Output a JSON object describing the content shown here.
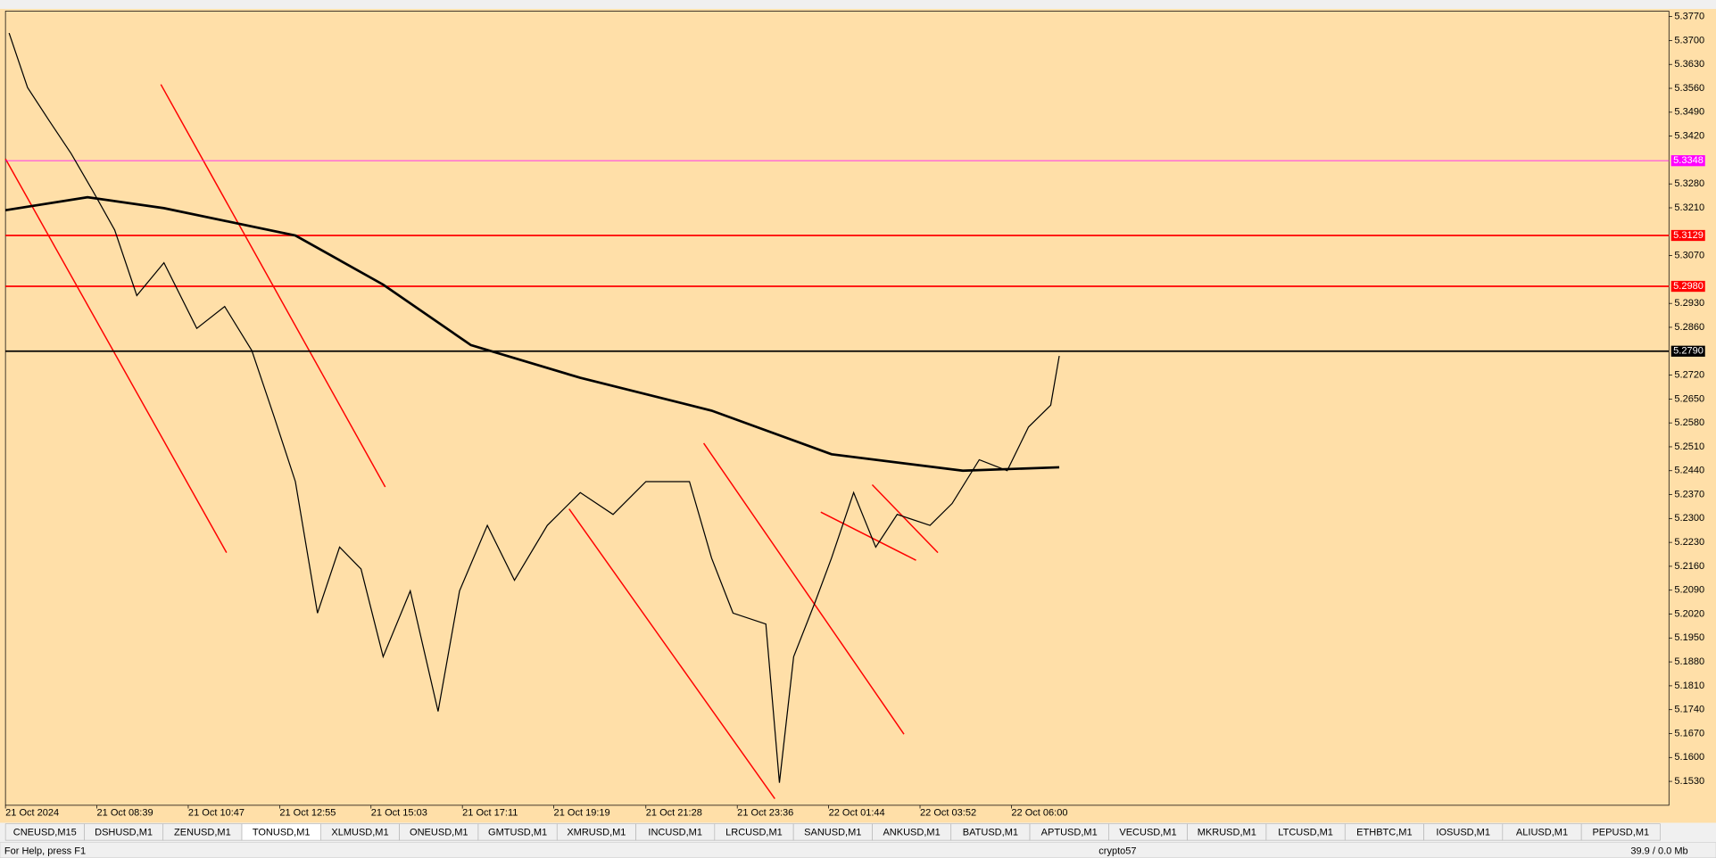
{
  "chart_data": {
    "type": "line",
    "xlim": [
      0,
      2330
    ],
    "ylim": [
      5.146,
      5.3786
    ],
    "xticks": [
      {
        "value": 0,
        "label": "21 Oct 2024"
      },
      {
        "value": 128,
        "label": "21 Oct 08:39"
      },
      {
        "value": 256,
        "label": "21 Oct 10:47"
      },
      {
        "value": 384,
        "label": "21 Oct 12:55"
      },
      {
        "value": 512,
        "label": "21 Oct 15:03"
      },
      {
        "value": 640,
        "label": "21 Oct 17:11"
      },
      {
        "value": 768,
        "label": "21 Oct 19:19"
      },
      {
        "value": 897,
        "label": "21 Oct 21:28"
      },
      {
        "value": 1025,
        "label": "21 Oct 23:36"
      },
      {
        "value": 1153,
        "label": "22 Oct 01:44"
      },
      {
        "value": 1281,
        "label": "22 Oct 03:52"
      },
      {
        "value": 1409,
        "label": "22 Oct 06:00"
      }
    ],
    "yticks": [
      {
        "value": 5.377,
        "label": "5.3770"
      },
      {
        "value": 5.37,
        "label": "5.3700"
      },
      {
        "value": 5.363,
        "label": "5.3630"
      },
      {
        "value": 5.356,
        "label": "5.3560"
      },
      {
        "value": 5.349,
        "label": "5.3490"
      },
      {
        "value": 5.342,
        "label": "5.3420"
      },
      {
        "value": 5.328,
        "label": "5.3280"
      },
      {
        "value": 5.321,
        "label": "5.3210"
      },
      {
        "value": 5.307,
        "label": "5.3070"
      },
      {
        "value": 5.293,
        "label": "5.2930"
      },
      {
        "value": 5.286,
        "label": "5.2860"
      },
      {
        "value": 5.272,
        "label": "5.2720"
      },
      {
        "value": 5.265,
        "label": "5.2650"
      },
      {
        "value": 5.258,
        "label": "5.2580"
      },
      {
        "value": 5.251,
        "label": "5.2510"
      },
      {
        "value": 5.244,
        "label": "5.2440"
      },
      {
        "value": 5.237,
        "label": "5.2370"
      },
      {
        "value": 5.23,
        "label": "5.2300"
      },
      {
        "value": 5.223,
        "label": "5.2230"
      },
      {
        "value": 5.216,
        "label": "5.2160"
      },
      {
        "value": 5.209,
        "label": "5.2090"
      },
      {
        "value": 5.202,
        "label": "5.2020"
      },
      {
        "value": 5.195,
        "label": "5.1950"
      },
      {
        "value": 5.188,
        "label": "5.1880"
      },
      {
        "value": 5.181,
        "label": "5.1810"
      },
      {
        "value": 5.174,
        "label": "5.1740"
      },
      {
        "value": 5.167,
        "label": "5.1670"
      },
      {
        "value": 5.16,
        "label": "5.1600"
      },
      {
        "value": 5.153,
        "label": "5.1530"
      }
    ],
    "levels": [
      {
        "value": 5.3348,
        "label": "5.3348",
        "color": "#ff00ff"
      },
      {
        "value": 5.3129,
        "label": "5.3129",
        "color": "#ff0000"
      },
      {
        "value": 5.298,
        "label": "5.2980",
        "color": "#ff0000"
      },
      {
        "value": 5.279,
        "label": "5.2790",
        "color": "#000000"
      }
    ],
    "series": [
      {
        "color": "#000000",
        "x": [
          5,
          31,
          61,
          92,
          123,
          153,
          184,
          222,
          268,
          307,
          345,
          376,
          406,
          437,
          468,
          498,
          529,
          567,
          606,
          636,
          675,
          713,
          759,
          805,
          851,
          897,
          958,
          989,
          1019,
          1065,
          1084,
          1104,
          1134,
          1157,
          1188,
          1219,
          1249,
          1295,
          1326,
          1364,
          1403,
          1433,
          1464,
          1476
        ],
        "values": [
          5.3722,
          5.3562,
          5.3466,
          5.3369,
          5.3257,
          5.3145,
          5.2953,
          5.3049,
          5.2857,
          5.2921,
          5.2792,
          5.26,
          5.2408,
          5.2023,
          5.2216,
          5.2152,
          5.1895,
          5.2088,
          5.1735,
          5.2088,
          5.228,
          5.2119,
          5.228,
          5.2376,
          5.2312,
          5.2408,
          5.2408,
          5.2184,
          5.2023,
          5.1991,
          5.1526,
          5.1895,
          5.2055,
          5.2184,
          5.2376,
          5.2216,
          5.2312,
          5.228,
          5.2344,
          5.2472,
          5.244,
          5.2568,
          5.2632,
          5.2776
        ]
      },
      {
        "color": "#000000",
        "x": [
          0,
          115,
          222,
          406,
          529,
          652,
          805,
          989,
          1157,
          1341,
          1476
        ],
        "values": [
          5.3203,
          5.3241,
          5.3209,
          5.3129,
          5.2985,
          5.2808,
          5.2712,
          5.2616,
          5.2488,
          5.244,
          5.245
        ]
      }
    ]
  },
  "tabs": [
    "CNEUSD,M15",
    "DSHUSD,M1",
    "ZENUSD,M1",
    "TONUSD,M1",
    "XLMUSD,M1",
    "ONEUSD,M1",
    "GMTUSD,M1",
    "XMRUSD,M1",
    "INCUSD,M1",
    "LRCUSD,M1",
    "SANUSD,M1",
    "ANKUSD,M1",
    "BATUSD,M1",
    "APTUSD,M1",
    "VECUSD,M1",
    "MKRUSD,M1",
    "LTCUSD,M1",
    "ETHBTC,M1",
    "IOSUSD,M1",
    "ALIUSD,M1",
    "PEPUSD,M1"
  ],
  "active_tab": "TONUSD,M1",
  "status": {
    "help": "For Help, press F1",
    "profile": "crypto57",
    "traffic": "39.9 / 0.0 Mb"
  }
}
